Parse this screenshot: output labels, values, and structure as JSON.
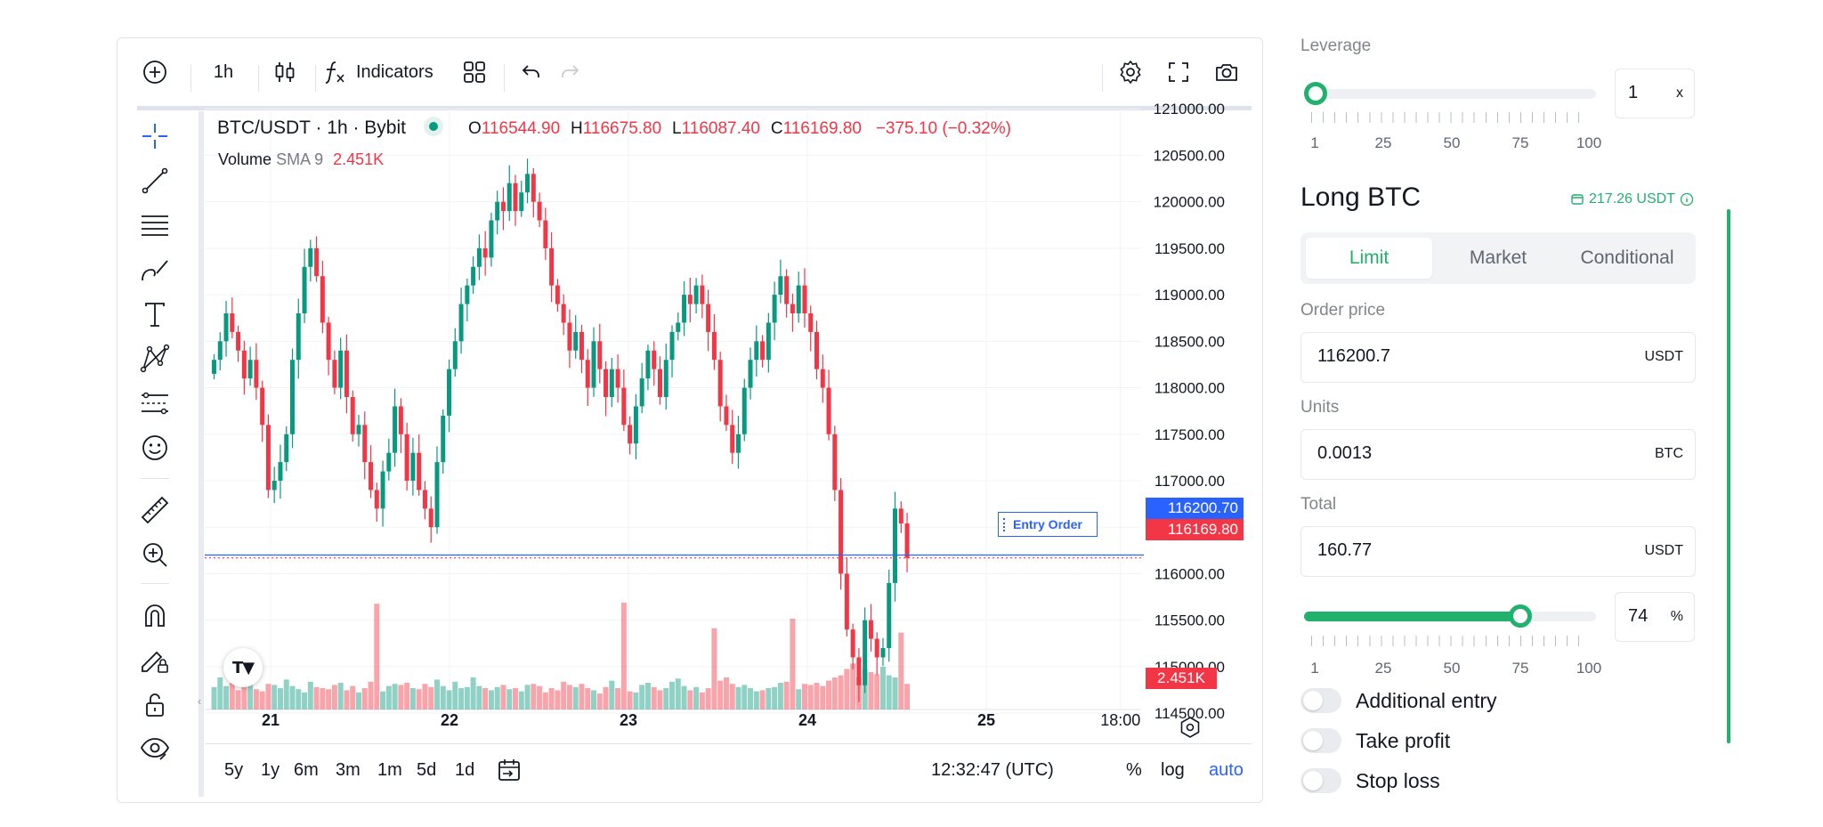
{
  "colors": {
    "up": "#089981",
    "down": "#f23645",
    "accent": "#2962ff",
    "form_green": "#20b26c"
  },
  "top_toolbar": {
    "interval": "1h",
    "indicators_label": "Indicators",
    "icons": [
      "add-symbol-icon",
      "candles-icon",
      "indicators-fx-icon",
      "layout-icon",
      "undo-icon",
      "redo-icon",
      "settings-icon",
      "fullscreen-icon",
      "camera-icon"
    ]
  },
  "left_toolbar": {
    "icons": [
      "crosshair-icon",
      "trend-line-icon",
      "fib-lines-icon",
      "brush-icon",
      "text-icon",
      "pattern-icon",
      "forecast-icon",
      "emoji-icon",
      "ruler-icon",
      "zoom-in-icon",
      "magnet-icon",
      "lock-drawing-icon",
      "unlock-icon",
      "eye-icon"
    ]
  },
  "legend": {
    "symbol": "BTC/USDT · 1h · Bybit",
    "o_label": "O",
    "o_value": "116544.90",
    "h_label": "H",
    "h_value": "116675.80",
    "l_label": "L",
    "l_value": "116087.40",
    "c_label": "C",
    "c_value": "116169.80",
    "change": "−375.10 (−0.32%)"
  },
  "volume_legend": {
    "name": "Volume",
    "sma": "SMA 9",
    "value": "2.451K"
  },
  "entry_order_label": "Entry Order",
  "price_tags": {
    "entry": "116200.70",
    "last": "116169.80",
    "volume": "2.451K"
  },
  "chart_data": {
    "type": "candlestick",
    "title": "BTC/USDT · 1h · Bybit",
    "y_ticks": [
      "121000.00",
      "120500.00",
      "120000.00",
      "119500.00",
      "119000.00",
      "118500.00",
      "118000.00",
      "117500.00",
      "117000.00",
      "116500.00",
      "116000.00",
      "115500.00",
      "115000.00",
      "114500.00"
    ],
    "ylim": [
      114300,
      121050
    ],
    "x_ticks": [
      {
        "label": "21",
        "x": 0.75
      },
      {
        "label": "22",
        "x": 1.75
      },
      {
        "label": "23",
        "x": 2.75
      },
      {
        "label": "24",
        "x": 3.75
      },
      {
        "label": "25",
        "x": 4.75
      },
      {
        "label": "18:00",
        "x": 5.5
      }
    ],
    "x_unit": "days",
    "entry_price": 116200.7,
    "last_price": 116169.8,
    "closes": [
      118300,
      118500,
      118800,
      118600,
      118400,
      118100,
      118300,
      118000,
      117600,
      116900,
      117000,
      117200,
      117500,
      118300,
      118800,
      119300,
      119500,
      119200,
      118700,
      118300,
      118000,
      118400,
      117900,
      117500,
      117600,
      117200,
      116900,
      116700,
      117100,
      117300,
      117800,
      117500,
      117000,
      117300,
      116900,
      116700,
      116500,
      117200,
      117700,
      118200,
      118500,
      118900,
      119100,
      119300,
      119500,
      119400,
      119800,
      120000,
      119900,
      120200,
      119900,
      120100,
      120300,
      120000,
      119800,
      119500,
      119100,
      118900,
      118700,
      118400,
      118600,
      118300,
      118000,
      118500,
      118200,
      117900,
      118200,
      118000,
      117600,
      117400,
      117800,
      118100,
      118400,
      118200,
      117900,
      118300,
      118600,
      118700,
      119000,
      118900,
      119100,
      118900,
      118600,
      118300,
      117800,
      117600,
      117300,
      117500,
      118000,
      118300,
      118500,
      118300,
      118700,
      119000,
      119200,
      118900,
      118800,
      119100,
      118800,
      118600,
      118200,
      118000,
      117500,
      116900,
      116000,
      115400,
      115100,
      114800,
      115500,
      115300,
      115100,
      115200,
      115900,
      116700,
      116540,
      116170
    ],
    "volumes": [
      210,
      300,
      220,
      250,
      180,
      260,
      230,
      190,
      170,
      240,
      230,
      200,
      280,
      220,
      190,
      160,
      260,
      210,
      200,
      190,
      230,
      250,
      180,
      220,
      160,
      200,
      260,
      210,
      170,
      220,
      240,
      230,
      250,
      200,
      190,
      240,
      210,
      280,
      220,
      180,
      260,
      200,
      210,
      300,
      220,
      200,
      180,
      210,
      230,
      190,
      200,
      170,
      230,
      240,
      220,
      160,
      200,
      180,
      260,
      230,
      210,
      240,
      200,
      180,
      150,
      210,
      270,
      200,
      230,
      170,
      160,
      230,
      250,
      210,
      180,
      200,
      260,
      290,
      220,
      180,
      210,
      160,
      200,
      230,
      270,
      300,
      240,
      210,
      230,
      200,
      170,
      180,
      200,
      210,
      250,
      260,
      200,
      190,
      240,
      230,
      250,
      220,
      270,
      300,
      320,
      380,
      430,
      300,
      380,
      350,
      330,
      400,
      320,
      300,
      280,
      240
    ],
    "volume_tall": {
      "27": 990,
      "68": 1000,
      "83": 760,
      "96": 850,
      "114": 720,
      "130": 620,
      "141": 560,
      "165": 710,
      "183": 650,
      "194": 590
    }
  },
  "bottom_toolbar": {
    "ranges": [
      "5y",
      "1y",
      "6m",
      "3m",
      "1m",
      "5d",
      "1d"
    ],
    "clock": "12:32:47 (UTC)",
    "percent": "%",
    "log": "log",
    "auto": "auto"
  },
  "order_form": {
    "leverage_label": "Leverage",
    "leverage_value": "1",
    "leverage_unit": "x",
    "leverage_fraction": 0.0,
    "slider_tick_labels": [
      "1",
      "25",
      "50",
      "75",
      "100"
    ],
    "title": "Long BTC",
    "available_balance": "217.26 USDT",
    "tabs": [
      "Limit",
      "Market",
      "Conditional"
    ],
    "active_tab": "Limit",
    "order_price_label": "Order price",
    "order_price_value": "116200.7",
    "order_price_unit": "USDT",
    "units_label": "Units",
    "units_value": "0.0013",
    "units_unit": "BTC",
    "total_label": "Total",
    "total_value": "160.77",
    "total_unit": "USDT",
    "percent_value": "74",
    "percent_unit": "%",
    "percent_fraction": 0.74,
    "toggles": [
      "Additional entry",
      "Take profit",
      "Stop loss"
    ]
  }
}
